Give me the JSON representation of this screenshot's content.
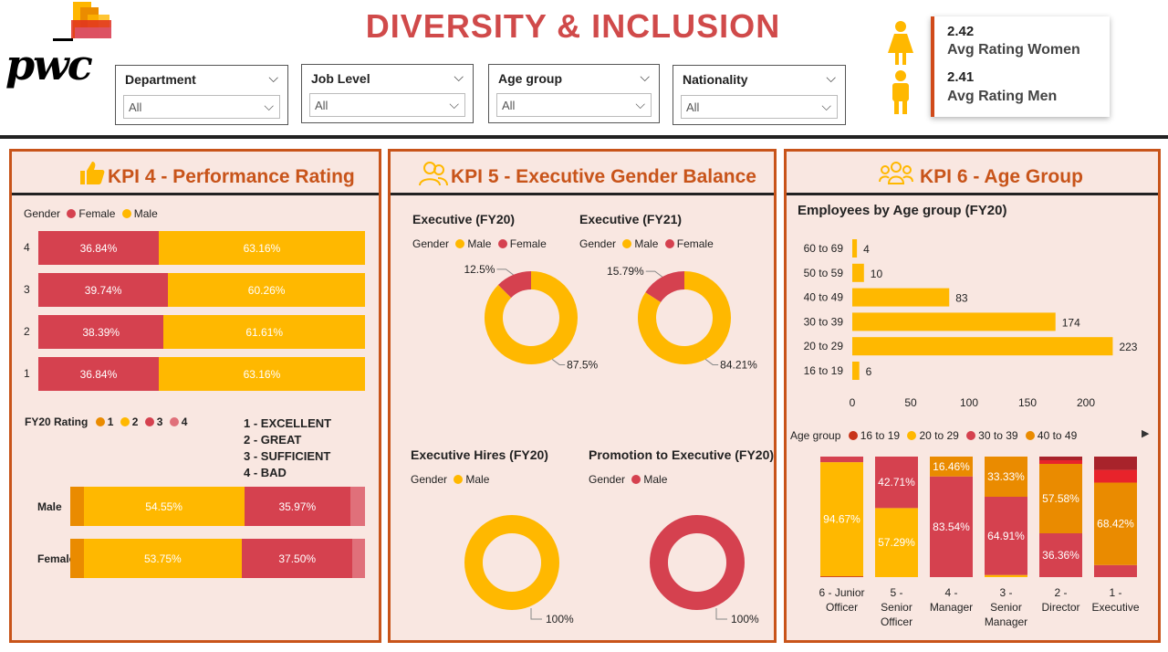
{
  "header": {
    "logo_text": "pwc",
    "title": "DIVERSITY & INCLUSION",
    "filters": [
      {
        "label": "Department",
        "value": "All"
      },
      {
        "label": "Job Level",
        "value": "All"
      },
      {
        "label": "Age group",
        "value": "All"
      },
      {
        "label": "Nationality",
        "value": "All"
      }
    ],
    "avg_women_value": "2.42",
    "avg_women_label": "Avg Rating Women",
    "avg_men_value": "2.41",
    "avg_men_label": "Avg Rating Men"
  },
  "colors": {
    "male": "#ffb800",
    "female": "#d5414f",
    "accent": "#c8541a",
    "panel_bg": "#f9e7e1",
    "rating1": "#ea8b00",
    "rating2": "#ffb800",
    "rating3": "#d5414f",
    "rating4": "#e0707a",
    "age1619": "#c8341a",
    "age2029": "#ffb800",
    "age3039": "#d5414f",
    "age4049": "#ea8b00",
    "age5059": "#e8232b",
    "age6069": "#a8232b"
  },
  "kpi4": {
    "title": "KPI 4 - Performance Rating",
    "legend_title": "Gender",
    "legend": [
      "Female",
      "Male"
    ],
    "rating_legend_title": "FY20 Rating",
    "rating_legend": [
      "1",
      "2",
      "3",
      "4"
    ],
    "rating_key": [
      "1 - EXCELLENT",
      "2 - GREAT",
      "3 - SUFFICIENT",
      "4 - BAD"
    ]
  },
  "kpi5": {
    "title": "KPI 5 - Executive Gender Balance",
    "donuts": [
      {
        "title": "Executive (FY20)",
        "legend_title": "Gender",
        "legend": [
          "Male",
          "Female"
        ]
      },
      {
        "title": "Executive (FY21)",
        "legend_title": "Gender",
        "legend": [
          "Male",
          "Female"
        ]
      },
      {
        "title": "Executive Hires (FY20)",
        "legend_title": "Gender",
        "legend": [
          "Male"
        ]
      },
      {
        "title": "Promotion to Executive (FY20)",
        "legend_title": "Gender",
        "legend": [
          "Male"
        ]
      }
    ]
  },
  "kpi6": {
    "title": "KPI 6 - Age Group",
    "bar_title": "Employees by Age group (FY20)",
    "legend_title": "Age group",
    "legend": [
      "16 to 19",
      "20 to 29",
      "30 to 39",
      "40 to 49"
    ],
    "scroll_arrow": "▶"
  },
  "chart_data": [
    {
      "type": "bar",
      "orientation": "horizontal-stacked-100",
      "categories": [
        "4",
        "3",
        "2",
        "1"
      ],
      "series": [
        {
          "name": "Female",
          "values": [
            36.84,
            39.74,
            38.39,
            36.84
          ],
          "labels": [
            "36.84%",
            "39.74%",
            "38.39%",
            "36.84%"
          ]
        },
        {
          "name": "Male",
          "values": [
            63.16,
            60.26,
            61.61,
            63.16
          ],
          "labels": [
            "63.16%",
            "60.26%",
            "61.61%",
            "63.16%"
          ]
        }
      ],
      "legend_title": "Gender"
    },
    {
      "type": "bar",
      "orientation": "horizontal-stacked-100",
      "categories": [
        "Male",
        "Female"
      ],
      "series": [
        {
          "name": "1",
          "values": [
            4.5,
            4.5
          ],
          "labels": [
            "",
            ""
          ]
        },
        {
          "name": "2",
          "values": [
            54.55,
            53.75
          ],
          "labels": [
            "54.55%",
            "53.75%"
          ]
        },
        {
          "name": "3",
          "values": [
            35.97,
            37.5
          ],
          "labels": [
            "35.97%",
            "37.50%"
          ]
        },
        {
          "name": "4",
          "values": [
            4.98,
            4.25
          ],
          "labels": [
            "",
            ""
          ]
        }
      ],
      "legend_title": "FY20 Rating"
    },
    {
      "type": "pie",
      "title": "Executive (FY20)",
      "series": [
        {
          "name": "Male",
          "values": [
            87.5
          ],
          "label": "87.5%"
        },
        {
          "name": "Female",
          "values": [
            12.5
          ],
          "label": "12.5%"
        }
      ]
    },
    {
      "type": "pie",
      "title": "Executive (FY21)",
      "series": [
        {
          "name": "Male",
          "values": [
            84.21
          ],
          "label": "84.21%"
        },
        {
          "name": "Female",
          "values": [
            15.79
          ],
          "label": "15.79%"
        }
      ]
    },
    {
      "type": "pie",
      "title": "Executive Hires (FY20)",
      "series": [
        {
          "name": "Male",
          "values": [
            100
          ],
          "label": "100%"
        }
      ]
    },
    {
      "type": "pie",
      "title": "Promotion to Executive (FY20)",
      "series": [
        {
          "name": "Male",
          "values": [
            100
          ],
          "label": "100%"
        }
      ]
    },
    {
      "type": "bar",
      "orientation": "horizontal",
      "title": "Employees by Age group (FY20)",
      "categories": [
        "60 to 69",
        "50 to 59",
        "40 to 49",
        "30 to 39",
        "20 to 29",
        "16 to 19"
      ],
      "values": [
        4,
        10,
        83,
        174,
        223,
        6
      ],
      "xticks": [
        "0",
        "50",
        "100",
        "150",
        "200"
      ],
      "xlim": [
        0,
        230
      ]
    },
    {
      "type": "bar",
      "orientation": "vertical-stacked-100",
      "categories": [
        "6 - Junior Officer",
        "5 - Senior Officer",
        "4 - Manager",
        "3 - Senior Manager",
        "2 - Director",
        "1 - Executive"
      ],
      "series": [
        {
          "name": "16 to 19",
          "values": [
            0.7,
            0,
            0,
            0,
            0,
            0
          ],
          "labels": [
            "",
            "",
            "",
            "",
            "",
            ""
          ]
        },
        {
          "name": "20 to 29",
          "values": [
            94.67,
            57.29,
            0,
            1.76,
            0,
            0
          ],
          "labels": [
            "94.67%",
            "57.29%",
            "",
            "",
            "",
            ""
          ]
        },
        {
          "name": "30 to 39",
          "values": [
            4.63,
            42.71,
            83.54,
            64.91,
            36.36,
            10.0
          ],
          "labels": [
            "",
            "42.71%",
            "83.54%",
            "64.91%",
            "36.36%",
            ""
          ]
        },
        {
          "name": "40 to 49",
          "values": [
            0,
            0,
            16.46,
            33.33,
            57.58,
            68.42
          ],
          "labels": [
            "",
            "",
            "16.46%",
            "33.33%",
            "57.58%",
            "68.42%"
          ]
        },
        {
          "name": "50 to 59",
          "values": [
            0,
            0,
            0,
            0,
            3.03,
            10.53
          ],
          "labels": [
            "",
            "",
            "",
            "",
            "",
            ""
          ]
        },
        {
          "name": "60 to 69",
          "values": [
            0,
            0,
            0,
            0,
            3.03,
            11.05
          ],
          "labels": [
            "",
            "",
            "",
            "",
            "",
            ""
          ]
        }
      ],
      "legend_title": "Age group"
    }
  ]
}
